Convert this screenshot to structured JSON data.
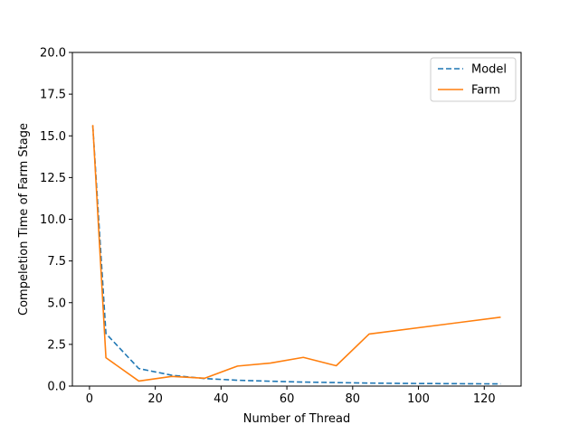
{
  "chart_data": {
    "type": "line",
    "title": "",
    "xlabel": "Number of Thread",
    "ylabel": "Compeletion Time of Farm Stage",
    "xlim": [
      -5.2,
      131.2
    ],
    "ylim": [
      0,
      20
    ],
    "x_ticks": [
      0,
      20,
      40,
      60,
      80,
      100,
      120
    ],
    "x_tick_labels": [
      "0",
      "20",
      "40",
      "60",
      "80",
      "100",
      "120"
    ],
    "y_ticks": [
      0,
      2.5,
      5,
      7.5,
      10,
      12.5,
      15,
      17.5,
      20
    ],
    "y_tick_labels": [
      "0.0",
      "2.5",
      "5.0",
      "7.5",
      "10.0",
      "12.5",
      "15.0",
      "17.5",
      "20.0"
    ],
    "grid": false,
    "legend_position": "top-right",
    "series": [
      {
        "name": "Model",
        "color": "#1f77b4",
        "dash": "dashed",
        "x": [
          1,
          5,
          15,
          25,
          35,
          45,
          55,
          65,
          75,
          85,
          95,
          105,
          115,
          125
        ],
        "y": [
          15.6,
          3.15,
          1.05,
          0.65,
          0.45,
          0.35,
          0.29,
          0.24,
          0.21,
          0.18,
          0.16,
          0.15,
          0.14,
          0.13
        ]
      },
      {
        "name": "Farm",
        "color": "#ff7f0e",
        "dash": "solid",
        "x": [
          1,
          5,
          15,
          25,
          35,
          45,
          55,
          65,
          75,
          85,
          125
        ],
        "y": [
          15.65,
          1.7,
          0.3,
          0.58,
          0.47,
          1.2,
          1.38,
          1.72,
          1.22,
          3.12,
          4.13
        ]
      }
    ]
  }
}
